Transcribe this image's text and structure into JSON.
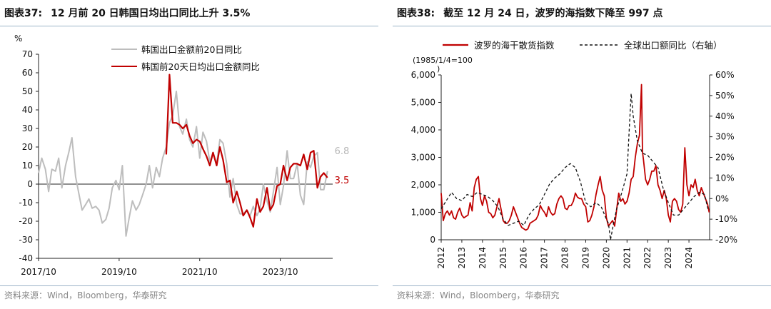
{
  "colors": {
    "red": "#c00000",
    "gray": "#bdbdbd",
    "black": "#111111"
  },
  "left": {
    "title": {
      "figure_no": "图表37:",
      "text": "12 月前 20 日韩国日均出口同比上升 3.5%"
    },
    "source": "资料来源：Wind，Bloomberg，华泰研究",
    "unit_label": "%",
    "end_labels": {
      "gray": "6.8",
      "red": "3.5"
    }
  },
  "right": {
    "title": {
      "figure_no": "图表38:",
      "text": "截至 12 月 24 日，波罗的海指数下降至 997 点"
    },
    "source": "资料来源：Wind，Bloomberg，华泰研究",
    "left_axis_note": "(1985/1/4=100",
    "left_axis_note2": ")"
  },
  "chart_data": [
    {
      "type": "line",
      "title": "12 月前 20 日韩国日均出口同比上升 3.5%",
      "ylabel": "%",
      "ylim": [
        -40,
        70
      ],
      "yticks": [
        -40,
        -30,
        -20,
        -10,
        0,
        10,
        20,
        30,
        40,
        50,
        60,
        70
      ],
      "xlim": [
        2017.75,
        2025.05
      ],
      "xticks": [
        {
          "x": 2017.75,
          "label": "2017/10"
        },
        {
          "x": 2019.75,
          "label": "2019/10"
        },
        {
          "x": 2021.75,
          "label": "2021/10"
        },
        {
          "x": 2023.75,
          "label": "2023/10"
        }
      ],
      "legend": "top-center",
      "series": [
        {
          "name": "韩国出口金额前20日同比",
          "color": "#bdbdbd",
          "x": [
            2017.75,
            2017.83,
            2017.92,
            2018.0,
            2018.08,
            2018.17,
            2018.25,
            2018.33,
            2018.42,
            2018.5,
            2018.58,
            2018.67,
            2018.75,
            2018.83,
            2018.92,
            2019.0,
            2019.08,
            2019.17,
            2019.25,
            2019.33,
            2019.42,
            2019.5,
            2019.58,
            2019.67,
            2019.75,
            2019.83,
            2019.92,
            2020.0,
            2020.08,
            2020.17,
            2020.25,
            2020.33,
            2020.42,
            2020.5,
            2020.58,
            2020.67,
            2020.75,
            2020.83,
            2020.92,
            2021.0,
            2021.08,
            2021.17,
            2021.25,
            2021.33,
            2021.42,
            2021.5,
            2021.58,
            2021.67,
            2021.75,
            2021.83,
            2021.92,
            2022.0,
            2022.08,
            2022.17,
            2022.25,
            2022.33,
            2022.42,
            2022.5,
            2022.58,
            2022.67,
            2022.75,
            2022.83,
            2022.92,
            2023.0,
            2023.08,
            2023.17,
            2023.25,
            2023.33,
            2023.42,
            2023.5,
            2023.58,
            2023.67,
            2023.75,
            2023.83,
            2023.92,
            2024.0,
            2024.08,
            2024.17,
            2024.25,
            2024.33,
            2024.42,
            2024.5,
            2024.58,
            2024.67,
            2024.75,
            2024.83,
            2024.92
          ],
          "values": [
            6,
            14,
            8,
            -4,
            8,
            7,
            14,
            -2,
            10,
            17,
            25,
            4,
            -5,
            -14,
            -11,
            -8,
            -13,
            -12,
            -14,
            -21,
            -19,
            -13,
            -2,
            2,
            -3,
            10,
            -28,
            -18,
            -9,
            -14,
            -11,
            -6,
            0,
            10,
            -2,
            9,
            4,
            14,
            20,
            33,
            37,
            50,
            31,
            27,
            35,
            24,
            20,
            31,
            14,
            28,
            23,
            12,
            17,
            11,
            24,
            22,
            11,
            -7,
            3,
            -11,
            -16,
            -16,
            -14,
            -17,
            -12,
            -17,
            -13,
            0,
            -9,
            -15,
            -4,
            9,
            -11,
            -1,
            18,
            3,
            3,
            11,
            -6,
            -11,
            12,
            9,
            15,
            17,
            -3,
            -3,
            7
          ],
          "end_label": "6.8"
        },
        {
          "name": "韩国前20天日均出口金额同比",
          "color": "#c00000",
          "x": [
            2020.92,
            2021.0,
            2021.08,
            2021.17,
            2021.25,
            2021.33,
            2021.42,
            2021.5,
            2021.58,
            2021.67,
            2021.75,
            2021.83,
            2021.92,
            2022.0,
            2022.08,
            2022.17,
            2022.25,
            2022.33,
            2022.42,
            2022.5,
            2022.58,
            2022.67,
            2022.75,
            2022.83,
            2022.92,
            2023.0,
            2023.08,
            2023.17,
            2023.25,
            2023.33,
            2023.42,
            2023.5,
            2023.58,
            2023.67,
            2023.75,
            2023.83,
            2023.92,
            2024.0,
            2024.08,
            2024.17,
            2024.25,
            2024.33,
            2024.42,
            2024.5,
            2024.58,
            2024.67,
            2024.75,
            2024.83,
            2024.92
          ],
          "values": [
            16,
            59,
            33,
            33,
            32,
            30,
            32,
            26,
            22,
            24,
            23,
            19,
            15,
            10,
            17,
            10,
            20,
            13,
            1,
            2,
            -10,
            -4,
            -10,
            -17,
            -14,
            -18,
            -23,
            -8,
            -15,
            -12,
            -2,
            -14,
            -11,
            -1,
            0,
            10,
            2,
            9,
            11,
            11,
            10,
            16,
            8,
            17,
            18,
            -2,
            4,
            6,
            3.5
          ],
          "end_label": "3.5"
        }
      ]
    },
    {
      "type": "line",
      "title": "截至 12 月 24 日，波罗的海指数下降至 997 点",
      "ylabel_left": "(1985/1/4=100)",
      "ylim": [
        0,
        6000
      ],
      "yticks": [
        0,
        1000,
        2000,
        3000,
        4000,
        5000,
        6000
      ],
      "ylim_right": [
        -20,
        60
      ],
      "yticks_right": [
        -20,
        -10,
        0,
        10,
        20,
        30,
        40,
        50,
        60
      ],
      "xlim": [
        2012.0,
        2025.0
      ],
      "xticks": [
        2012,
        2013,
        2014,
        2015,
        2016,
        2017,
        2018,
        2019,
        2020,
        2021,
        2022,
        2023,
        2024
      ],
      "legend": "top",
      "series": [
        {
          "name": "波罗的海干散货指数",
          "color": "#c00000",
          "axis": "left",
          "x": [
            2012.0,
            2012.1,
            2012.2,
            2012.3,
            2012.4,
            2012.5,
            2012.6,
            2012.7,
            2012.8,
            2012.9,
            2013.0,
            2013.1,
            2013.2,
            2013.3,
            2013.4,
            2013.5,
            2013.6,
            2013.7,
            2013.8,
            2013.9,
            2014.0,
            2014.1,
            2014.2,
            2014.3,
            2014.4,
            2014.5,
            2014.6,
            2014.7,
            2014.8,
            2014.9,
            2015.0,
            2015.1,
            2015.2,
            2015.3,
            2015.4,
            2015.5,
            2015.6,
            2015.7,
            2015.8,
            2015.9,
            2016.0,
            2016.1,
            2016.2,
            2016.3,
            2016.4,
            2016.5,
            2016.6,
            2016.7,
            2016.8,
            2016.9,
            2017.0,
            2017.1,
            2017.2,
            2017.3,
            2017.4,
            2017.5,
            2017.6,
            2017.7,
            2017.8,
            2017.9,
            2018.0,
            2018.1,
            2018.2,
            2018.3,
            2018.4,
            2018.5,
            2018.6,
            2018.7,
            2018.8,
            2018.9,
            2019.0,
            2019.1,
            2019.2,
            2019.3,
            2019.4,
            2019.5,
            2019.6,
            2019.7,
            2019.8,
            2019.9,
            2020.0,
            2020.1,
            2020.2,
            2020.3,
            2020.4,
            2020.5,
            2020.6,
            2020.7,
            2020.8,
            2020.9,
            2021.0,
            2021.1,
            2021.2,
            2021.3,
            2021.4,
            2021.5,
            2021.6,
            2021.7,
            2021.75,
            2021.8,
            2021.9,
            2022.0,
            2022.1,
            2022.2,
            2022.3,
            2022.4,
            2022.5,
            2022.6,
            2022.7,
            2022.8,
            2022.9,
            2023.0,
            2023.1,
            2023.2,
            2023.3,
            2023.4,
            2023.5,
            2023.6,
            2023.7,
            2023.8,
            2023.9,
            2024.0,
            2024.1,
            2024.2,
            2024.3,
            2024.4,
            2024.5,
            2024.6,
            2024.7,
            2024.8,
            2024.9,
            2024.98
          ],
          "values": [
            1700,
            700,
            950,
            1050,
            900,
            1050,
            800,
            750,
            1000,
            1150,
            900,
            800,
            850,
            900,
            1350,
            1050,
            1900,
            2200,
            2300,
            1500,
            1250,
            1600,
            1400,
            1000,
            950,
            800,
            900,
            1200,
            1500,
            1100,
            700,
            600,
            600,
            700,
            900,
            1200,
            1000,
            800,
            600,
            450,
            400,
            350,
            400,
            600,
            650,
            700,
            750,
            900,
            1250,
            1100,
            1000,
            850,
            1200,
            1000,
            900,
            950,
            1300,
            1500,
            1600,
            1500,
            1150,
            1100,
            1250,
            1250,
            1400,
            1700,
            1550,
            1500,
            1500,
            1300,
            1200,
            650,
            700,
            900,
            1200,
            1650,
            2000,
            2300,
            1800,
            1600,
            800,
            500,
            600,
            700,
            500,
            1100,
            1700,
            1400,
            1500,
            1300,
            1400,
            1700,
            2200,
            2300,
            3000,
            3500,
            3800,
            5650,
            3200,
            2900,
            2200,
            2000,
            2200,
            2500,
            2500,
            2700,
            2000,
            1800,
            1500,
            1800,
            1500,
            900,
            650,
            1400,
            1500,
            1400,
            1100,
            1000,
            1300,
            3350,
            2000,
            1600,
            2000,
            1900,
            2200,
            1800,
            1600,
            1900,
            1700,
            1500,
            1300,
            997
          ]
        },
        {
          "name": "全球出口额同比（右轴）",
          "color": "#111111",
          "axis": "right",
          "dashed": true,
          "x": [
            2012.0,
            2012.25,
            2012.5,
            2012.75,
            2013.0,
            2013.25,
            2013.5,
            2013.75,
            2014.0,
            2014.25,
            2014.5,
            2014.75,
            2015.0,
            2015.25,
            2015.5,
            2015.75,
            2016.0,
            2016.25,
            2016.5,
            2016.75,
            2017.0,
            2017.25,
            2017.5,
            2017.75,
            2018.0,
            2018.25,
            2018.5,
            2018.75,
            2019.0,
            2019.25,
            2019.5,
            2019.75,
            2020.0,
            2020.1,
            2020.2,
            2020.35,
            2020.5,
            2020.75,
            2021.0,
            2021.1,
            2021.2,
            2021.3,
            2021.5,
            2021.75,
            2022.0,
            2022.25,
            2022.5,
            2022.75,
            2023.0,
            2023.25,
            2023.5,
            2023.75,
            2024.0,
            2024.25,
            2024.5,
            2024.75,
            2024.92
          ],
          "values": [
            -5,
            -1,
            3,
            0,
            -1,
            2,
            1,
            3,
            2,
            1,
            -1,
            -4,
            -10,
            -13,
            -12,
            -11,
            -13,
            -8,
            -5,
            -3,
            2,
            7,
            10,
            12,
            15,
            17,
            15,
            8,
            -2,
            -4,
            -2,
            -4,
            -10,
            -12,
            -20,
            -12,
            -5,
            3,
            12,
            32,
            51,
            40,
            28,
            22,
            21,
            18,
            15,
            5,
            -2,
            -8,
            -8,
            -5,
            -2,
            1,
            3,
            2,
            -5
          ]
        }
      ]
    }
  ]
}
